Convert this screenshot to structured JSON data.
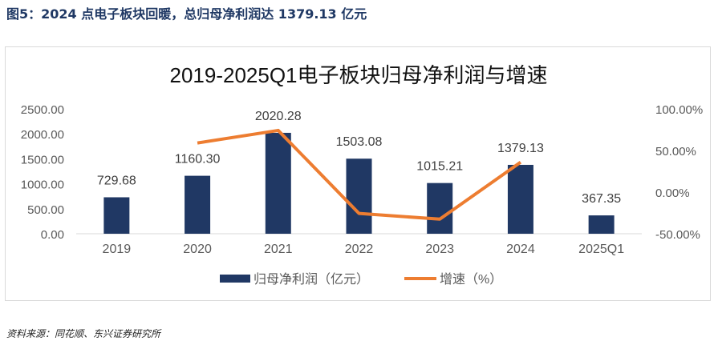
{
  "figure": {
    "caption": "图5：2024 点电子板块回暖，总归母净利润达 1379.13 亿元",
    "source": "资料来源：同花顺、东兴证券研究所"
  },
  "chart_data": {
    "type": "bar+line",
    "title": "2019-2025Q1电子板块归母净利润与增速",
    "categories": [
      "2019",
      "2020",
      "2021",
      "2022",
      "2023",
      "2024",
      "2025Q1"
    ],
    "series": [
      {
        "name": "归母净利润（亿元）",
        "type": "bar",
        "axis": "left",
        "color": "#203864",
        "values": [
          729.68,
          1160.3,
          2020.28,
          1503.08,
          1015.21,
          1379.13,
          367.35
        ],
        "labels": [
          "729.68",
          "1160.30",
          "2020.28",
          "1503.08",
          "1015.21",
          "1379.13",
          "367.35"
        ]
      },
      {
        "name": "增速（%）",
        "type": "line",
        "axis": "right",
        "color": "#ed7d31",
        "values": [
          null,
          59.0,
          74.1,
          -25.6,
          -32.5,
          35.9,
          null
        ]
      }
    ],
    "left_axis": {
      "ticks": [
        "0.00",
        "500.00",
        "1000.00",
        "1500.00",
        "2000.00",
        "2500.00"
      ],
      "ylim": [
        0,
        2500
      ]
    },
    "right_axis": {
      "ticks": [
        "-50.00%",
        "0.00%",
        "50.00%",
        "100.00%"
      ],
      "ylim": [
        -50,
        100
      ]
    },
    "legend": {
      "position": "bottom",
      "items": [
        "归母净利润（亿元）",
        "增速（%）"
      ]
    },
    "grid": false
  }
}
